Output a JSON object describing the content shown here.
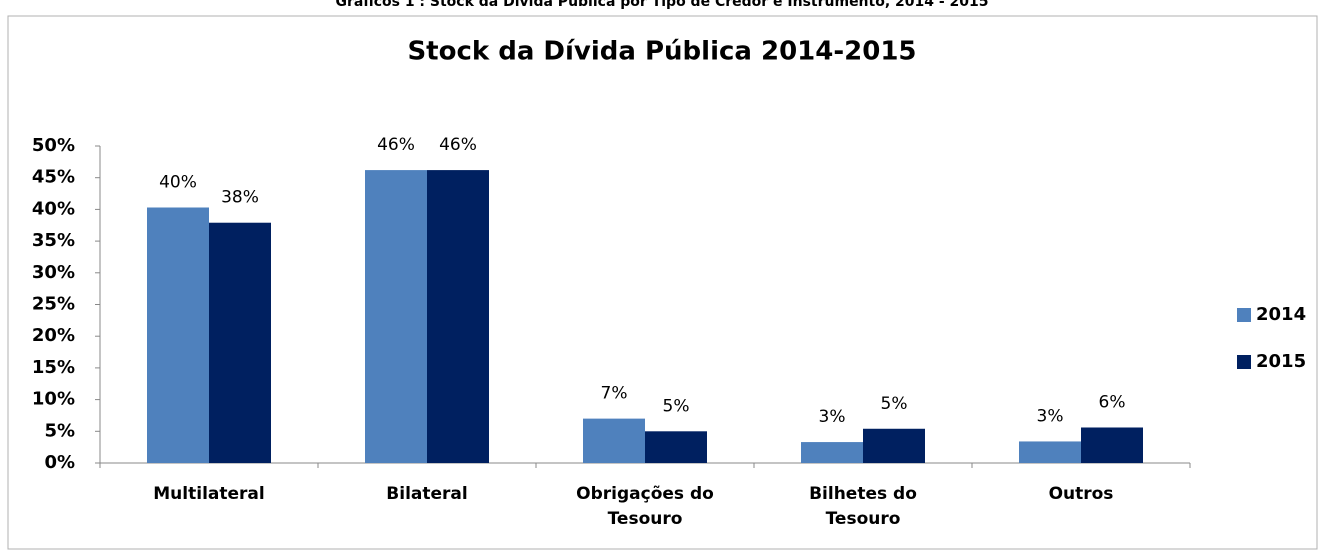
{
  "caption": "Gráficos 1 : Stock da Dívida Pública por Tipo  de Credor e Instrumento, 2014 - 2015",
  "chart_data": {
    "type": "bar",
    "title": "Stock da Dívida Pública 2014-2015",
    "categories": [
      "Multilateral",
      "Bilateral",
      "Obrigações do Tesouro",
      "Bilhetes do Tesouro",
      "Outros"
    ],
    "series": [
      {
        "name": "2014",
        "color": "#4f81bd",
        "values": [
          40.3,
          46.2,
          7.0,
          3.3,
          3.4
        ],
        "value_labels": [
          "40%",
          "46%",
          "7%",
          "3%",
          "3%"
        ]
      },
      {
        "name": "2015",
        "color": "#002060",
        "values": [
          37.9,
          46.2,
          5.0,
          5.4,
          5.6
        ],
        "value_labels": [
          "38%",
          "46%",
          "5%",
          "5%",
          "6%"
        ]
      }
    ],
    "ylim": [
      0,
      50
    ],
    "yticks": [
      {
        "value": 0,
        "label": "0%"
      },
      {
        "value": 5,
        "label": "5%"
      },
      {
        "value": 10,
        "label": "10%"
      },
      {
        "value": 15,
        "label": "15%"
      },
      {
        "value": 20,
        "label": "20%"
      },
      {
        "value": 25,
        "label": "25%"
      },
      {
        "value": 30,
        "label": "30%"
      },
      {
        "value": 35,
        "label": "35%"
      },
      {
        "value": 40,
        "label": "40%"
      },
      {
        "value": 45,
        "label": "45%"
      },
      {
        "value": 50,
        "label": "50%"
      }
    ],
    "legend": "right",
    "grid": false
  }
}
